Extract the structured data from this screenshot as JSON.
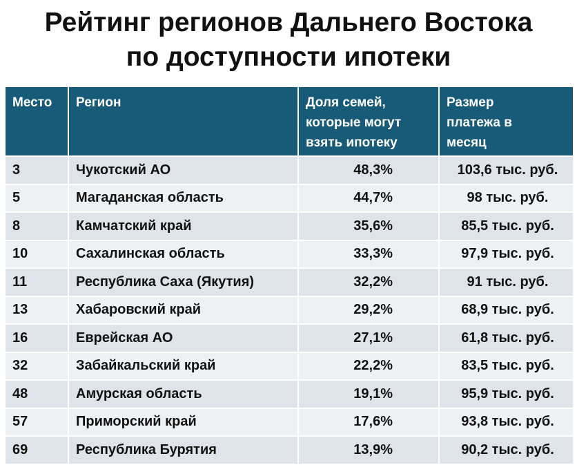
{
  "header": {
    "title_lines": [
      "Рейтинг регионов Дальнего Востока",
      "по доступности ипотеки"
    ]
  },
  "table": {
    "columns": [
      [
        "Место"
      ],
      [
        "Регион"
      ],
      [
        "Доля семей,",
        "которые могут",
        "взять ипотеку"
      ],
      [
        "Размер",
        "платежа в",
        "месяц"
      ]
    ],
    "rows": [
      [
        "3",
        "Чукотский АО",
        "48,3%",
        "103,6 тыс. руб."
      ],
      [
        "5",
        "Магаданская область",
        "44,7%",
        "98 тыс. руб."
      ],
      [
        "8",
        "Камчатский край",
        "35,6%",
        "85,5 тыс. руб."
      ],
      [
        "10",
        "Сахалинская область",
        "33,3%",
        "97,9 тыс. руб."
      ],
      [
        "11",
        "Республика Саха (Якутия)",
        "32,2%",
        "91 тыс. руб."
      ],
      [
        "13",
        "Хабаровский край",
        "29,2%",
        "68,9 тыс. руб."
      ],
      [
        "16",
        "Еврейская АО",
        "27,1%",
        "61,8 тыс. руб."
      ],
      [
        "32",
        "Забайкальский край",
        "22,2%",
        "83,5 тыс. руб."
      ],
      [
        "48",
        "Амурская область",
        "19,1%",
        "95,9 тыс. руб."
      ],
      [
        "57",
        "Приморский край",
        "17,6%",
        "93,8 тыс. руб."
      ],
      [
        "69",
        "Республика Бурятия",
        "13,9%",
        "90,2 тыс. руб."
      ]
    ]
  }
}
